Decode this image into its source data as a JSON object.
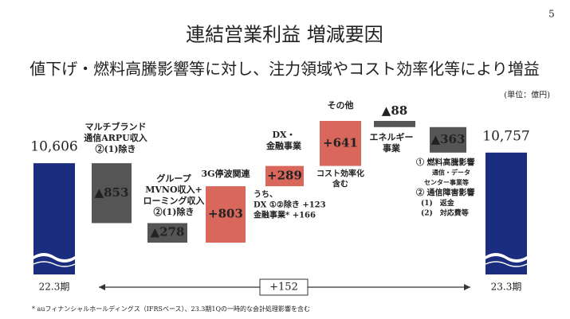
{
  "page_number": "5",
  "chart_data": {
    "type": "waterfall",
    "title": "連結営業利益 増減要因",
    "subtitle": "値下げ・燃料高騰影響等に対し、注力領域やコスト効率化等により増益",
    "unit": "(単位：億円)",
    "categories": [
      "22.3期",
      "マルチブランド\n通信ARPU収入\n②(1)除き",
      "グループ\nMVNO収入+\nローミング収入\n②(1)除き",
      "3G停波関連",
      "DX・\n金融事業",
      "その他",
      "エネルギー\n事業",
      null,
      "23.3期"
    ],
    "values": [
      10606,
      -853,
      -278,
      803,
      289,
      641,
      -88,
      -363,
      10757
    ],
    "value_labels": [
      "10,606",
      "▲853",
      "▲278",
      "+803",
      "+289",
      "+641",
      "▲88",
      "▲363",
      "10,757"
    ],
    "kinds": [
      "total",
      "change",
      "change",
      "change",
      "change",
      "change",
      "change",
      "change",
      "total"
    ],
    "colors": {
      "total": "#1b2d7f",
      "increase": "#d9675c",
      "decrease": "#555555"
    },
    "difference_label": "+152",
    "annotations": [
      [
        "うち、",
        "DX ①②除き +123",
        "金融事業* +166"
      ],
      [
        "コスト効率化",
        "含む"
      ],
      [
        "① 燃料高騰影響",
        "通信・データ",
        "センター事業等",
        "② 通信障害影響",
        "(1)　返金",
        "(2)　対応費等"
      ]
    ],
    "footnote": "* auフィナンシャルホールディングス（IFRSベース）、23.3期1Qの一時的な会計処理影響を含む"
  }
}
